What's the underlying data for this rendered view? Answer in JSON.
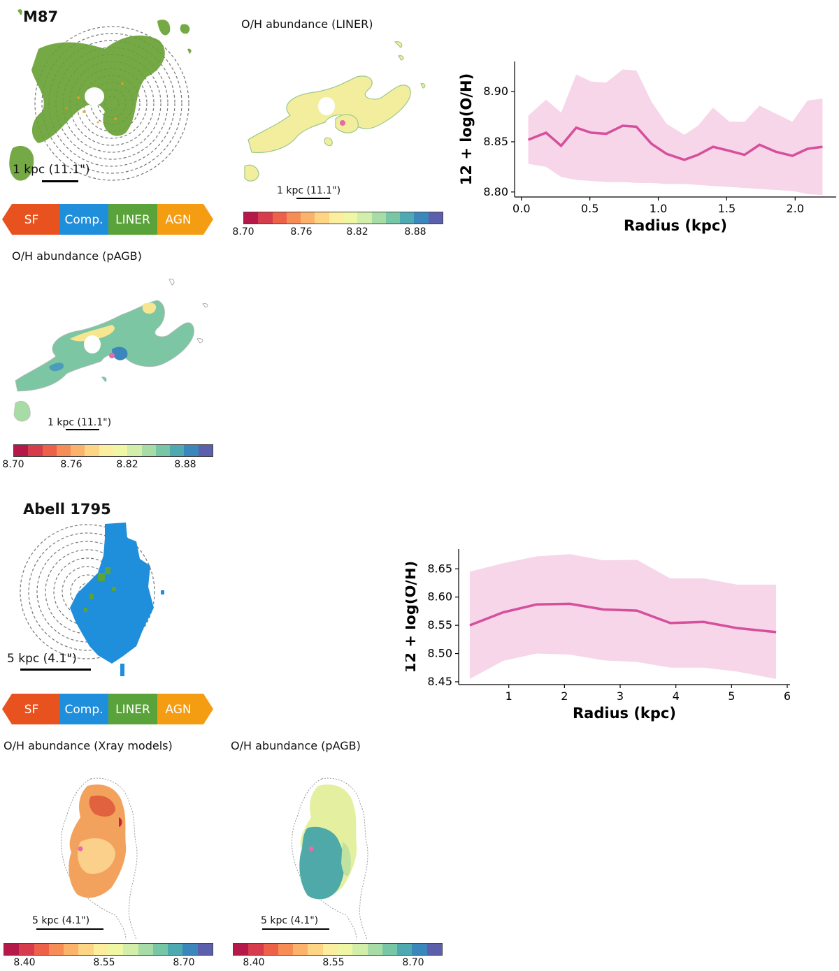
{
  "m87": {
    "title": "M87",
    "scale_label": "1 kpc (11.1\")",
    "liner_title": "O/H abundance (LINER)",
    "liner_scale": "1 kpc (11.1\")",
    "pagb_title": "O/H abundance (pAGB)",
    "pagb_scale": "1 kpc (11.1\")",
    "cbar_ticks": [
      "8.70",
      "8.76",
      "8.82",
      "8.88"
    ]
  },
  "abell": {
    "title": "Abell 1795",
    "scale_label": "5 kpc (4.1\")",
    "xray_title": "O/H abundance (Xray models)",
    "xray_scale": "5 kpc (4.1\")",
    "pagb_title": "O/H abundance (pAGB)",
    "pagb_scale": "5 kpc (4.1\")",
    "cbar_ticks": [
      "8.40",
      "8.55",
      "8.70"
    ]
  },
  "legend": {
    "items": [
      "SF",
      "Comp.",
      "LINER",
      "AGN"
    ],
    "colors": [
      "#e8521f",
      "#1f8fdc",
      "#5aa33a",
      "#f59d12"
    ]
  },
  "colors": {
    "line": "#d64f9c",
    "band": "#f6d6e8",
    "colormap": [
      "#b5194a",
      "#d63c4b",
      "#ec6148",
      "#f68d56",
      "#fbb36b",
      "#fdd584",
      "#fbee9e",
      "#eff7a4",
      "#d3edaa",
      "#a8dca6",
      "#77c7a6",
      "#4ea9b1",
      "#3b86bb",
      "#5b5fac"
    ]
  },
  "chart_data": [
    {
      "type": "line",
      "title": "",
      "xlabel": "Radius (kpc)",
      "ylabel": "12 + log(O/H)",
      "xlim": [
        -0.05,
        2.3
      ],
      "ylim": [
        8.795,
        8.93
      ],
      "xticks": [
        "0.0",
        "0.5",
        "1.0",
        "1.5",
        "2.0"
      ],
      "xtick_values": [
        0.0,
        0.5,
        1.0,
        1.5,
        2.0
      ],
      "yticks": [
        "8.80",
        "8.85",
        "8.90"
      ],
      "ytick_values": [
        8.8,
        8.85,
        8.9
      ],
      "x": [
        0.05,
        0.18,
        0.29,
        0.4,
        0.51,
        0.62,
        0.74,
        0.84,
        0.95,
        1.06,
        1.19,
        1.29,
        1.4,
        1.52,
        1.63,
        1.74,
        1.86,
        1.98,
        2.09,
        2.2
      ],
      "y": [
        8.852,
        8.859,
        8.846,
        8.864,
        8.859,
        8.858,
        8.866,
        8.865,
        8.848,
        8.838,
        8.832,
        8.837,
        8.845,
        8.841,
        8.837,
        8.847,
        8.84,
        8.836,
        8.843,
        8.845
      ],
      "y_upper": [
        8.876,
        8.892,
        8.879,
        8.917,
        8.91,
        8.909,
        8.922,
        8.921,
        8.89,
        8.868,
        8.857,
        8.866,
        8.884,
        8.87,
        8.87,
        8.886,
        8.878,
        8.87,
        8.891,
        8.893
      ],
      "y_lower": [
        8.828,
        8.825,
        8.815,
        8.812,
        8.811,
        8.81,
        8.81,
        8.809,
        8.809,
        8.808,
        8.808,
        8.807,
        8.806,
        8.805,
        8.804,
        8.803,
        8.802,
        8.801,
        8.798,
        8.797
      ]
    },
    {
      "type": "line",
      "title": "",
      "xlabel": "Radius (kpc)",
      "ylabel": "12 + log(O/H)",
      "xlim": [
        0.1,
        6.05
      ],
      "ylim": [
        8.445,
        8.685
      ],
      "xticks": [
        "1",
        "2",
        "3",
        "4",
        "5",
        "6"
      ],
      "xtick_values": [
        1,
        2,
        3,
        4,
        5,
        6
      ],
      "yticks": [
        "8.45",
        "8.50",
        "8.55",
        "8.60",
        "8.65"
      ],
      "ytick_values": [
        8.45,
        8.5,
        8.55,
        8.6,
        8.65
      ],
      "x": [
        0.3,
        0.9,
        1.5,
        2.1,
        2.7,
        3.3,
        3.9,
        4.5,
        5.1,
        5.8
      ],
      "y": [
        8.55,
        8.573,
        8.587,
        8.588,
        8.578,
        8.576,
        8.554,
        8.556,
        8.545,
        8.538
      ],
      "y_upper": [
        8.645,
        8.66,
        8.672,
        8.676,
        8.665,
        8.666,
        8.633,
        8.633,
        8.622,
        8.622
      ],
      "y_lower": [
        8.455,
        8.487,
        8.5,
        8.498,
        8.488,
        8.485,
        8.475,
        8.475,
        8.468,
        8.455
      ]
    }
  ]
}
